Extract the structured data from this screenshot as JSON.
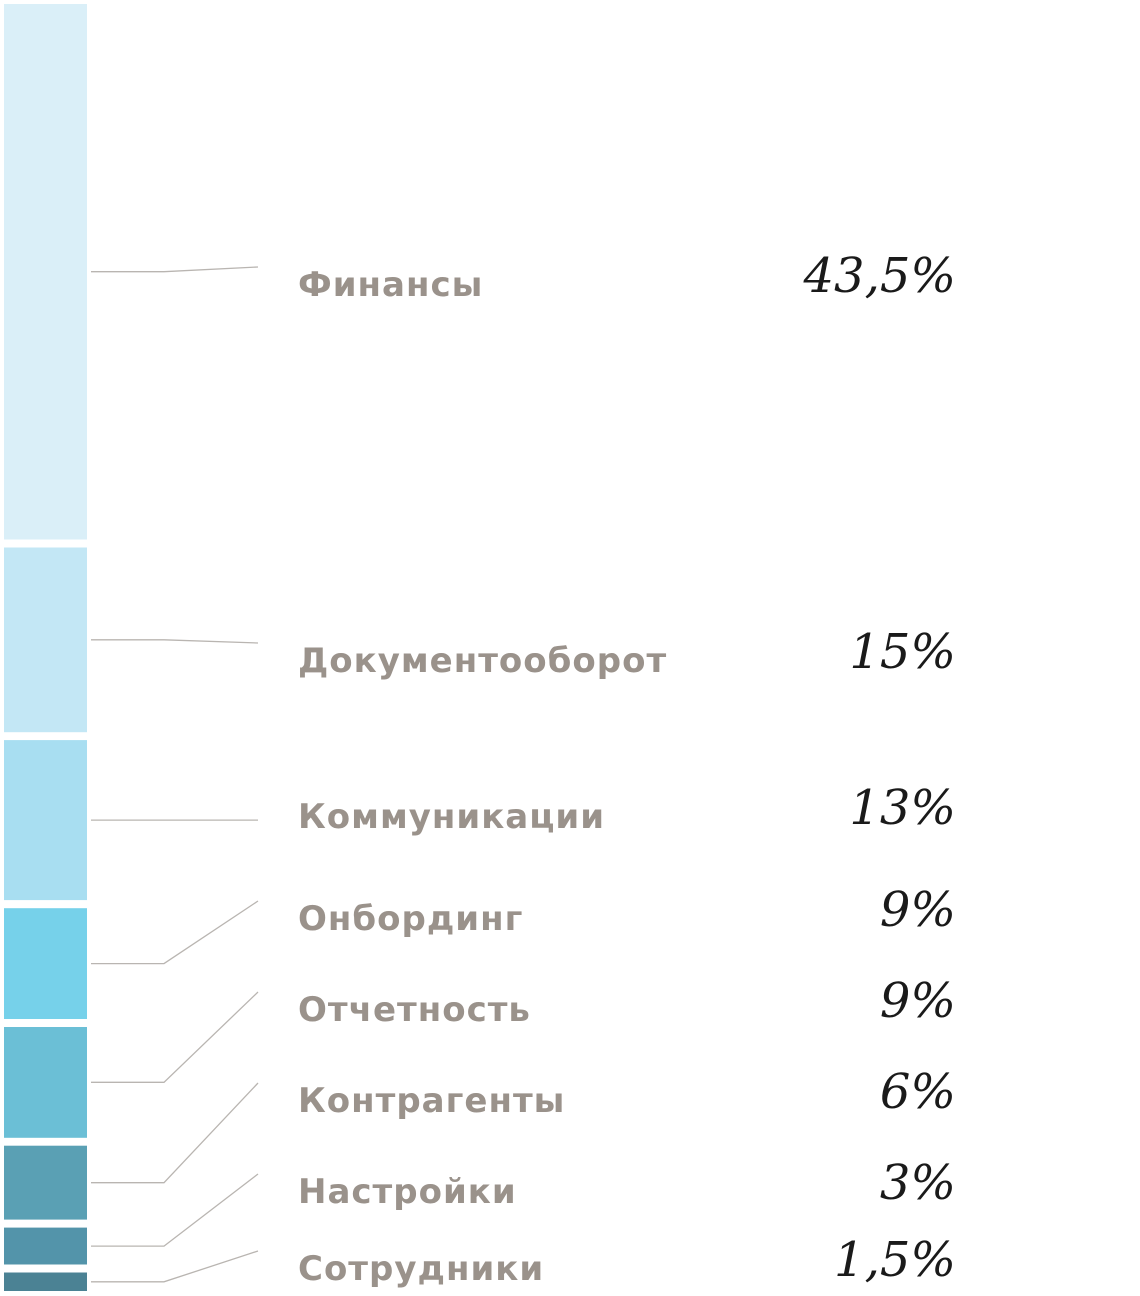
{
  "chart_data": {
    "type": "bar",
    "stacked": true,
    "orientation": "vertical",
    "title": "",
    "xlabel": "",
    "ylabel": "",
    "grid": false,
    "legend": "none",
    "unit": "%",
    "categories": [
      "Финансы",
      "Документооборот",
      "Коммуникации",
      "Онбординг",
      "Отчетность",
      "Контрагенты",
      "Настройки",
      "Сотрудники"
    ],
    "values": [
      43.5,
      15,
      13,
      9,
      9,
      6,
      3,
      1.5
    ],
    "value_labels": [
      "43,5%",
      "15%",
      "13%",
      "9%",
      "9%",
      "6%",
      "3%",
      "1,5%"
    ],
    "colors": [
      "#daeff8",
      "#c3e7f5",
      "#a8def1",
      "#76d1ea",
      "#6bbfd6",
      "#5aa0b4",
      "#5394aa",
      "#4b8294"
    ],
    "label_color": "#9a928b",
    "value_color": "#1a1a1a",
    "leader_color": "#b9b5b1"
  }
}
